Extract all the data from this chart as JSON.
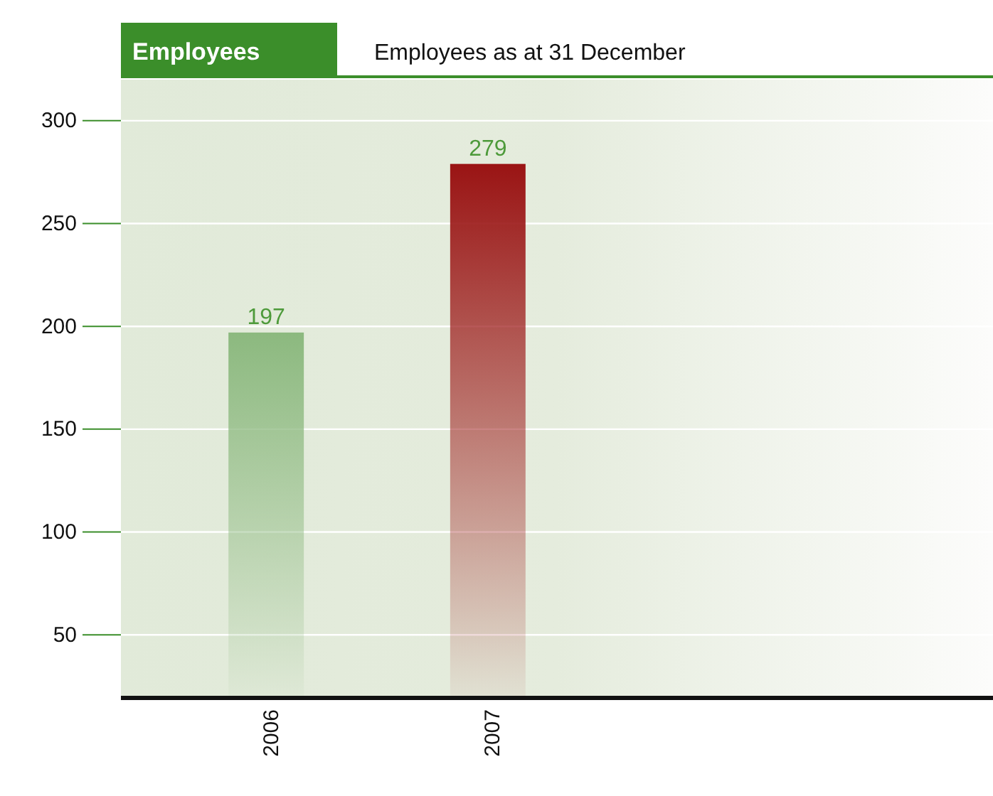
{
  "chart_data": {
    "type": "bar",
    "title": "Employees",
    "subtitle": "Employees as at 31 December",
    "categories": [
      "2006",
      "2007"
    ],
    "values": [
      197,
      279
    ],
    "colors": [
      "#8cb97f",
      "#9a1414"
    ],
    "ylim": [
      20,
      320
    ],
    "yticks": [
      50,
      100,
      150,
      200,
      250,
      300
    ],
    "grid": "y",
    "data_labels": true
  }
}
